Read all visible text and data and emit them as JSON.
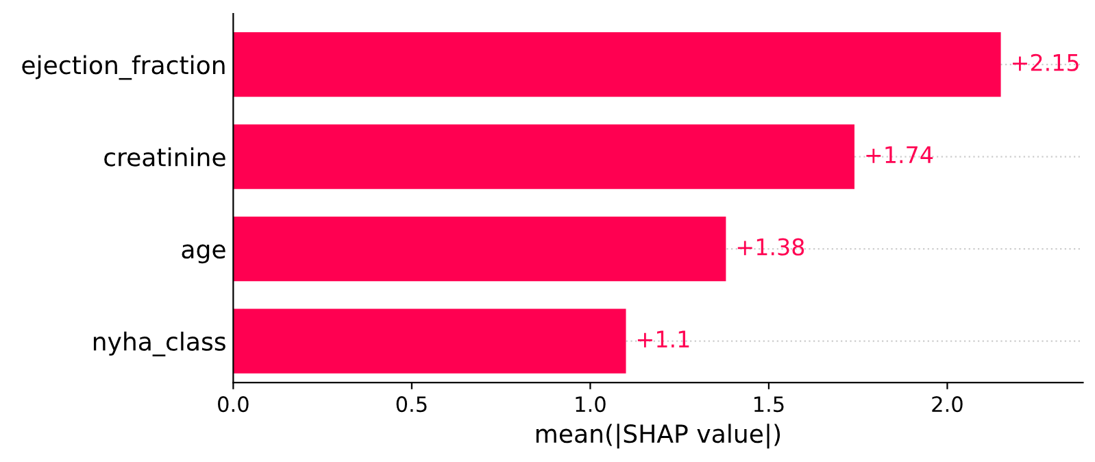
{
  "chart_data": {
    "type": "bar",
    "orientation": "horizontal",
    "xlabel": "mean(|SHAP value|)",
    "categories": [
      "ejection_fraction",
      "creatinine",
      "age",
      "nyha_class"
    ],
    "values": [
      2.15,
      1.74,
      1.38,
      1.1
    ],
    "value_labels": [
      "+2.15",
      "+1.74",
      "+1.38",
      "+1.1"
    ],
    "color": "#ff0051",
    "xlim": [
      0,
      2.38
    ],
    "xticks": [
      {
        "value": 0,
        "label": "0.0"
      },
      {
        "value": 0.5,
        "label": "0.5"
      },
      {
        "value": 1,
        "label": "1.0"
      },
      {
        "value": 1.5,
        "label": "1.5"
      },
      {
        "value": 2,
        "label": "2.0"
      }
    ],
    "grid": "y",
    "legend": false
  }
}
